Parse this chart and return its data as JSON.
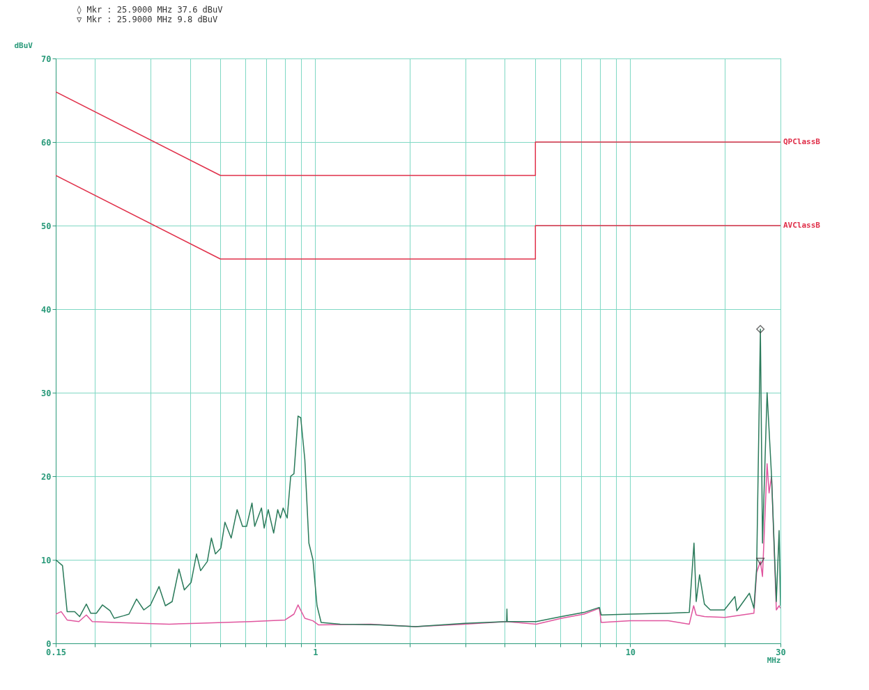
{
  "chart_data": {
    "type": "line",
    "xlabel": "MHz",
    "ylabel": "dBuV",
    "log": "x",
    "grid": true,
    "annotations": [
      "◊ Mkr  :   25.9000 MHz   37.6 dBuV",
      "▽ Mkr  :   25.9000 MHz    9.8 dBuV"
    ],
    "xlim": [
      0.15,
      30
    ],
    "ylim": [
      0,
      70
    ],
    "xticks": [
      0.15,
      {
        "value": 0.2,
        "label": null
      },
      {
        "value": 0.3,
        "label": null
      },
      {
        "value": 0.4,
        "label": null
      },
      {
        "value": 0.5,
        "label": null
      },
      {
        "value": 0.6,
        "label": null
      },
      {
        "value": 0.7,
        "label": null
      },
      {
        "value": 0.8,
        "label": null
      },
      {
        "value": 0.9,
        "label": null
      },
      1,
      {
        "value": 2,
        "label": null
      },
      {
        "value": 3,
        "label": null
      },
      {
        "value": 4,
        "label": null
      },
      {
        "value": 5,
        "label": null
      },
      {
        "value": 6,
        "label": null
      },
      {
        "value": 7,
        "label": null
      },
      {
        "value": 8,
        "label": null
      },
      {
        "value": 9,
        "label": null
      },
      10,
      {
        "value": 20,
        "label": null
      },
      30
    ],
    "yticks": [
      0,
      10,
      20,
      30,
      40,
      50,
      60,
      70
    ],
    "series": [
      {
        "name": "QPClassB",
        "color": "#e0304a",
        "x": [
          0.15,
          0.5,
          5,
          5,
          30
        ],
        "values": [
          66,
          56,
          56,
          60,
          60
        ]
      },
      {
        "name": "AVClassB",
        "color": "#e0304a",
        "x": [
          0.15,
          0.5,
          5,
          5,
          30
        ],
        "values": [
          56,
          46,
          46,
          50,
          50
        ]
      },
      {
        "color": "#e0559e",
        "x": [
          0.15,
          0.1561,
          0.163,
          0.1776,
          0.1876,
          0.1959,
          0.232,
          0.2809,
          0.344,
          0.4198,
          0.5118,
          0.624,
          0.8017,
          0.8558,
          0.8818,
          0.9266,
          0.9833,
          1.025,
          1.5,
          2.08,
          2.98,
          4.05,
          5.03,
          6.05,
          7.13,
          7.98,
          8.09,
          10,
          13.2,
          15.4,
          15.9,
          16.2,
          17.2,
          20,
          24.7,
          25.2,
          25.9,
          26.3,
          27.2,
          27.6,
          28.1,
          29.1,
          29.7,
          30
        ],
        "values": [
          3.5,
          3.8,
          2.8,
          2.6,
          3.4,
          2.6,
          2.5,
          2.4,
          2.3,
          2.4,
          2.5,
          2.6,
          2.8,
          3.5,
          4.6,
          3.0,
          2.7,
          2.2,
          2.3,
          2.0,
          2.3,
          2.6,
          2.3,
          3.0,
          3.5,
          4.2,
          2.5,
          2.7,
          2.7,
          2.3,
          4.5,
          3.4,
          3.2,
          3.1,
          3.6,
          8.5,
          9.8,
          8.0,
          21.5,
          18,
          20,
          4.0,
          4.5,
          4.2
        ]
      },
      {
        "color": "#2a7a5a",
        "x": [
          0.15,
          0.1576,
          0.163,
          0.1723,
          0.1786,
          0.1876,
          0.1938,
          0.2019,
          0.2111,
          0.2231,
          0.2299,
          0.2462,
          0.2562,
          0.2708,
          0.2856,
          0.2999,
          0.3192,
          0.3343,
          0.3513,
          0.3691,
          0.384,
          0.4035,
          0.4198,
          0.4325,
          0.4543,
          0.468,
          0.4821,
          0.5016,
          0.5167,
          0.5408,
          0.5648,
          0.5876,
          0.6053,
          0.6297,
          0.6423,
          0.6749,
          0.6884,
          0.7092,
          0.7378,
          0.76,
          0.7752,
          0.7907,
          0.8145,
          0.8357,
          0.8558,
          0.8818,
          0.8994,
          0.9266,
          0.9545,
          0.9833,
          1.013,
          1.044,
          1.2,
          1.6,
          2.08,
          2.98,
          4.05,
          4.06,
          4.07,
          5.03,
          6.05,
          7.13,
          7.98,
          8.09,
          10,
          13.2,
          15.4,
          15.94,
          16.2,
          16.6,
          17.2,
          17.96,
          19.9,
          21.5,
          21.8,
          23.9,
          24.7,
          25.2,
          25.9,
          26.3,
          27.2,
          28.1,
          29.1,
          29.7,
          30
        ],
        "values": [
          10,
          9.3,
          3.8,
          3.8,
          3.2,
          4.7,
          3.6,
          3.6,
          4.6,
          3.9,
          3.0,
          3.3,
          3.5,
          5.3,
          4.0,
          4.6,
          6.8,
          4.5,
          5.0,
          8.9,
          6.4,
          7.3,
          10.7,
          8.7,
          9.8,
          12.6,
          10.7,
          11.4,
          14.5,
          12.6,
          16.0,
          14.0,
          14.0,
          16.8,
          14.0,
          16.2,
          13.8,
          16.0,
          13.2,
          16.0,
          15.0,
          16.2,
          15.0,
          20.0,
          20.3,
          27.2,
          27.0,
          22.0,
          12.0,
          10.0,
          4.5,
          2.5,
          2.3,
          2.2,
          2.0,
          2.4,
          2.6,
          4.1,
          2.6,
          2.6,
          3.2,
          3.7,
          4.3,
          3.4,
          3.5,
          3.6,
          3.7,
          12.0,
          5.0,
          8.2,
          4.7,
          4.0,
          4.0,
          5.6,
          3.9,
          6.0,
          4.2,
          9.0,
          37.6,
          12.0,
          30.0,
          20.0,
          5.0,
          13.5,
          4.5
        ]
      },
      {
        "type": "scatter",
        "marker": "diamond",
        "color": "#333333",
        "x": [
          25.9
        ],
        "values": [
          37.6
        ]
      },
      {
        "type": "scatter",
        "marker": "triangle",
        "color": "#333333",
        "x": [
          25.9
        ],
        "values": [
          9.8
        ]
      }
    ]
  }
}
